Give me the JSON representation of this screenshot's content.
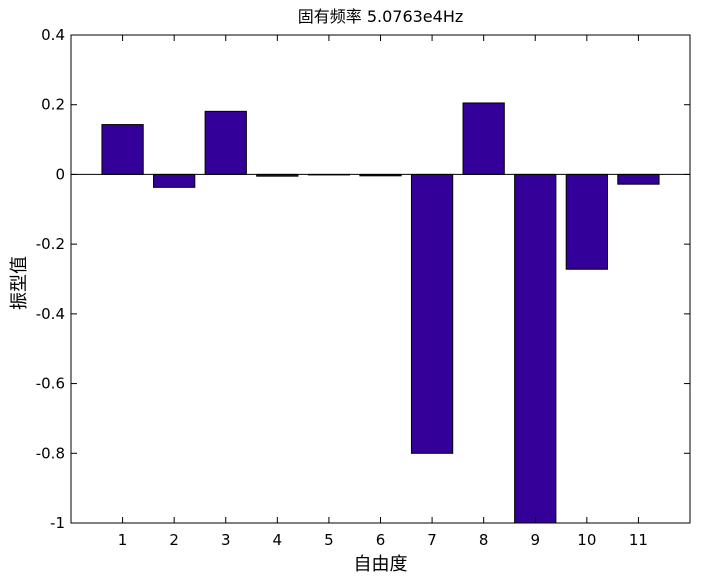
{
  "chart_data": {
    "type": "bar",
    "title": "固有频率 5.0763e4Hz",
    "xlabel": "自由度",
    "ylabel": "振型值",
    "categories": [
      "1",
      "2",
      "3",
      "4",
      "5",
      "6",
      "7",
      "8",
      "9",
      "10",
      "11"
    ],
    "values": [
      0.143,
      -0.037,
      0.181,
      -0.005,
      0.0,
      -0.004,
      -0.8,
      0.205,
      -1.0,
      -0.272,
      -0.028
    ],
    "xlim": [
      0,
      12
    ],
    "ylim": [
      -1,
      0.4
    ],
    "yticks": [
      "-1",
      "-0.8",
      "-0.6",
      "-0.4",
      "-0.2",
      "0",
      "0.2",
      "0.4"
    ],
    "yticks_values": [
      -1,
      -0.8,
      -0.6,
      -0.4,
      -0.2,
      0,
      0.2,
      0.4
    ],
    "grid": false,
    "bar_color": "#33009a",
    "bar_edge_color": "#000000"
  }
}
